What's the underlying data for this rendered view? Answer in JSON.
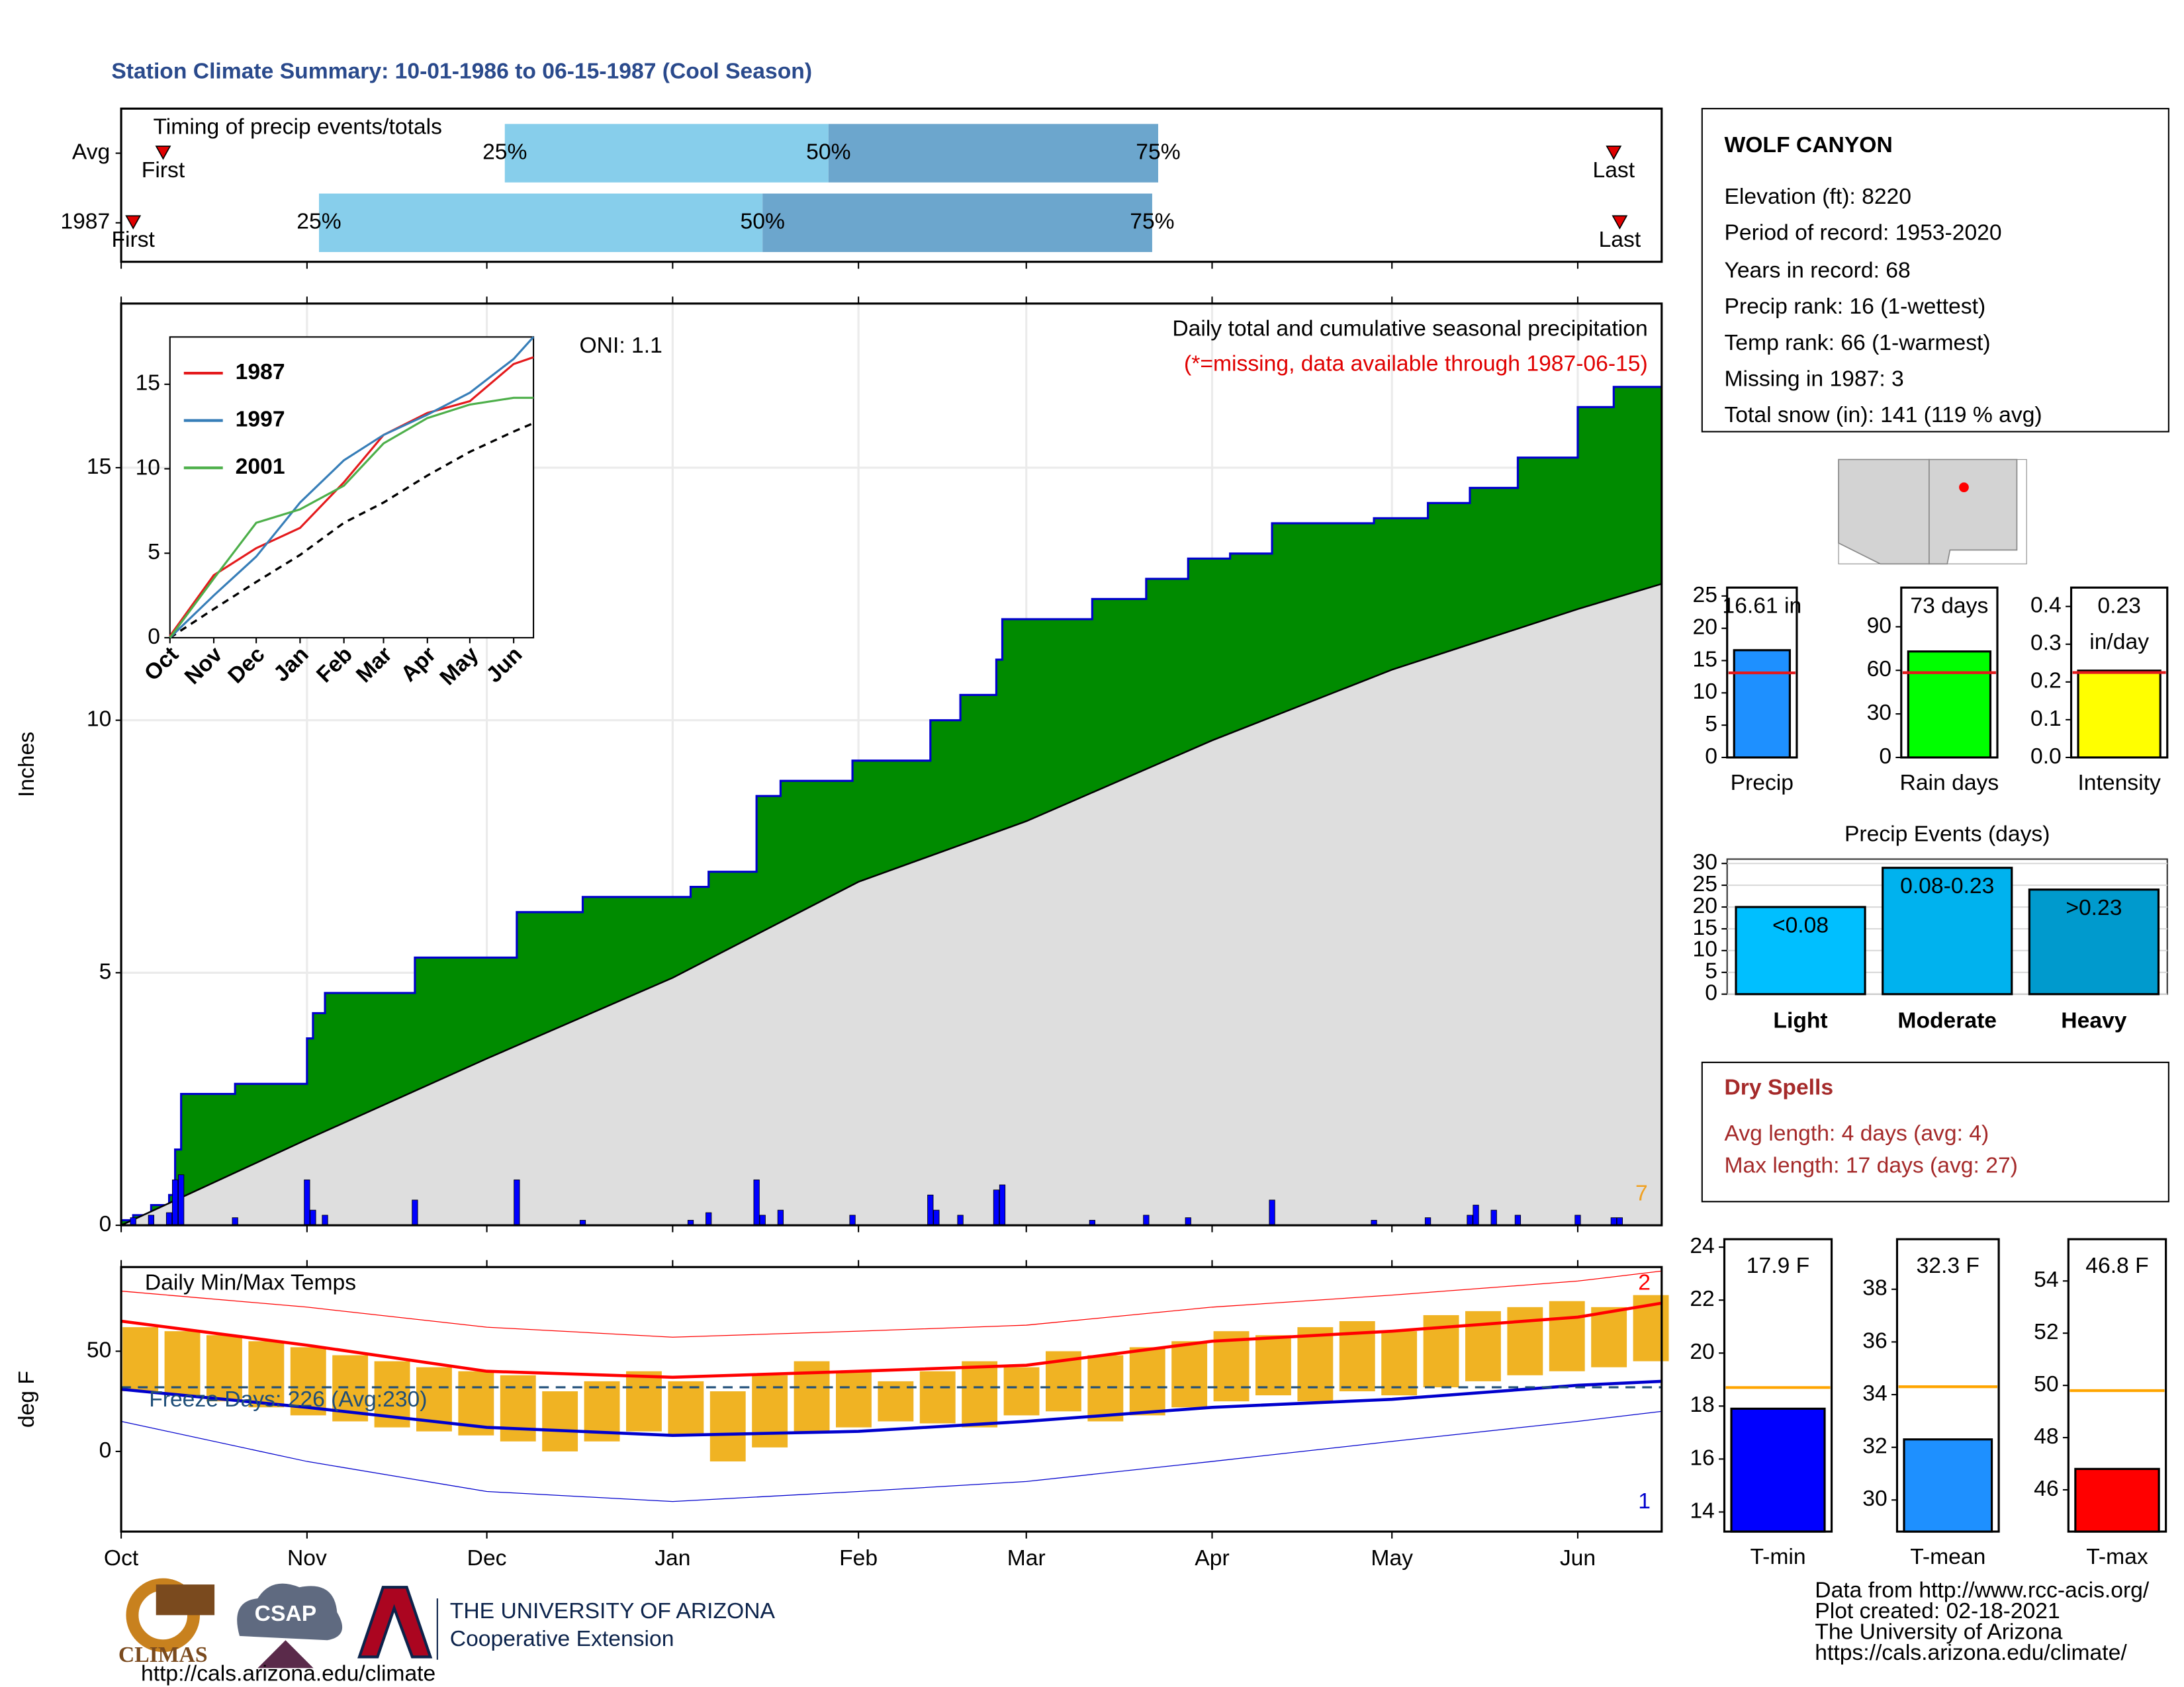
{
  "title": "Station Climate Summary: 10-01-1986 to 06-15-1987 (Cool Season)",
  "chart_data": [
    {
      "type": "timing",
      "title": "Timing of precip events/totals",
      "xlim": [
        0,
        257
      ],
      "xticks": [
        0,
        31,
        61,
        92,
        123,
        151,
        182,
        212,
        243
      ],
      "rows": [
        {
          "name": "Avg",
          "first": 7,
          "q25": 64,
          "q50": 118,
          "q75": 173,
          "last": 249
        },
        {
          "name": "1987",
          "first": 2,
          "q25": 33,
          "q50": 107,
          "q75": 172,
          "last": 250
        }
      ],
      "first_label": "First",
      "last_label": "Last",
      "quantile_labels": [
        "25%",
        "50%",
        "75%"
      ],
      "colors": [
        "#87ceeb",
        "#6ca6cd"
      ],
      "marker_color": "#e00000"
    },
    {
      "type": "area",
      "title": "Daily total and cumulative seasonal precipitation",
      "subtitle": "(*=missing, data available through 1987-06-15)",
      "annotation": "ONI: 1.1",
      "corner_label": "7",
      "y_label": "Inches",
      "xlim": [
        0,
        257
      ],
      "xticks": [
        0,
        31,
        61,
        92,
        123,
        151,
        182,
        212,
        243
      ],
      "ylim": [
        0,
        18.25
      ],
      "yticks": [
        0,
        5,
        10,
        15
      ],
      "grid": true,
      "cumulative": {
        "color": "#008b00",
        "edge": "#0000cd",
        "x": [
          0,
          2,
          2,
          5,
          5,
          8,
          8,
          9,
          9,
          10,
          10,
          19,
          19,
          31,
          31,
          32,
          32,
          34,
          34,
          49,
          49,
          66,
          66,
          77,
          77,
          95,
          95,
          98,
          98,
          106,
          106,
          110,
          110,
          122,
          122,
          135,
          135,
          140,
          140,
          146,
          146,
          147,
          147,
          162,
          162,
          171,
          171,
          178,
          178,
          185,
          185,
          192,
          192,
          209,
          209,
          218,
          218,
          225,
          225,
          233,
          233,
          243,
          243,
          249,
          249,
          257
        ],
        "values": [
          0.1,
          0.1,
          0.2,
          0.2,
          0.4,
          0.4,
          0.6,
          0.6,
          1.5,
          1.5,
          2.6,
          2.6,
          2.8,
          2.8,
          3.7,
          3.7,
          4.2,
          4.2,
          4.6,
          4.6,
          5.3,
          5.3,
          6.2,
          6.2,
          6.5,
          6.5,
          6.7,
          6.7,
          7.0,
          7.0,
          8.5,
          8.5,
          8.8,
          8.8,
          9.2,
          9.2,
          10.0,
          10.0,
          10.5,
          10.5,
          11.2,
          11.2,
          12.0,
          12.0,
          12.4,
          12.4,
          12.8,
          12.8,
          13.2,
          13.2,
          13.3,
          13.3,
          13.9,
          13.9,
          14.0,
          14.0,
          14.3,
          14.3,
          14.6,
          14.6,
          15.2,
          15.2,
          16.2,
          16.2,
          16.6,
          16.6
        ]
      },
      "average": {
        "color": "#dedede",
        "edge": "#000000",
        "x": [
          0,
          31,
          61,
          92,
          123,
          151,
          182,
          212,
          243,
          257
        ],
        "values": [
          0,
          1.7,
          3.3,
          4.9,
          6.8,
          8.0,
          9.6,
          11.0,
          12.2,
          12.7
        ]
      },
      "daily": {
        "color": "#0000ff",
        "x": [
          2,
          5,
          8,
          9,
          10,
          19,
          31,
          32,
          34,
          49,
          66,
          77,
          95,
          98,
          106,
          107,
          110,
          122,
          135,
          136,
          140,
          146,
          147,
          162,
          171,
          178,
          192,
          209,
          218,
          225,
          226,
          229,
          233,
          243,
          249,
          250
        ],
        "values": [
          0.15,
          0.2,
          0.25,
          0.9,
          1.0,
          0.15,
          0.9,
          0.3,
          0.2,
          0.5,
          0.9,
          0.1,
          0.1,
          0.25,
          0.9,
          0.2,
          0.3,
          0.2,
          0.6,
          0.3,
          0.2,
          0.7,
          0.8,
          0.1,
          0.2,
          0.15,
          0.5,
          0.1,
          0.15,
          0.2,
          0.4,
          0.3,
          0.2,
          0.2,
          0.15,
          0.15
        ]
      }
    },
    {
      "type": "line",
      "xlim": [
        0,
        257
      ],
      "xticks": [
        {
          "value": 0,
          "label": "Oct"
        },
        {
          "value": 31,
          "label": "Nov"
        },
        {
          "value": 61,
          "label": "Dec"
        },
        {
          "value": 92,
          "label": "Jan"
        },
        {
          "value": 123,
          "label": "Feb"
        },
        {
          "value": 151,
          "label": "Mar"
        },
        {
          "value": 182,
          "label": "Apr"
        },
        {
          "value": 212,
          "label": "May"
        },
        {
          "value": 243,
          "label": "Jun"
        }
      ],
      "ylim": [
        0,
        17.8
      ],
      "yticks": [
        0,
        5,
        10,
        15
      ],
      "x": [
        0,
        31,
        61,
        92,
        123,
        151,
        182,
        212,
        243,
        257
      ],
      "series": [
        {
          "name": "1987",
          "color": "#e41a1c",
          "values": [
            0.1,
            3.7,
            5.3,
            6.5,
            9.2,
            12.0,
            13.3,
            14.0,
            16.2,
            16.6
          ]
        },
        {
          "name": "1997",
          "color": "#377eb8",
          "values": [
            0,
            2.5,
            4.8,
            8.0,
            10.5,
            12.0,
            13.2,
            14.5,
            16.5,
            17.8
          ]
        },
        {
          "name": "2001",
          "color": "#4daf4a",
          "values": [
            0,
            3.5,
            6.8,
            7.6,
            9.0,
            11.5,
            13.0,
            13.8,
            14.2,
            14.2
          ]
        }
      ],
      "average": [
        0,
        1.7,
        3.3,
        4.9,
        6.8,
        8.0,
        9.6,
        11.0,
        12.2,
        12.7
      ]
    },
    {
      "type": "range",
      "title": "Daily Min/Max Temps",
      "annotation": "Freeze Days: 226 (Avg:230)",
      "y_label": "deg F",
      "max_label": "2",
      "min_label": "1",
      "xlim": [
        0,
        257
      ],
      "xticks": [
        {
          "value": 0,
          "label": "Oct"
        },
        {
          "value": 31,
          "label": "Nov"
        },
        {
          "value": 61,
          "label": "Dec"
        },
        {
          "value": 92,
          "label": "Jan"
        },
        {
          "value": 123,
          "label": "Feb"
        },
        {
          "value": 151,
          "label": "Mar"
        },
        {
          "value": 182,
          "label": "Apr"
        },
        {
          "value": 212,
          "label": "May"
        },
        {
          "value": 243,
          "label": "Jun"
        }
      ],
      "ylim": [
        -40,
        92
      ],
      "yticks": [
        0,
        50
      ],
      "freeze": 32,
      "normals_x": [
        0,
        31,
        61,
        92,
        123,
        151,
        182,
        212,
        243,
        257
      ],
      "avg_max": [
        65,
        53,
        40,
        37,
        40,
        43,
        55,
        60,
        67,
        74
      ],
      "avg_min": [
        31,
        22,
        12,
        8,
        10,
        15,
        22,
        26,
        33,
        35
      ],
      "record_max": [
        80,
        72,
        62,
        57,
        60,
        63,
        72,
        78,
        85,
        90
      ],
      "record_min": [
        15,
        -5,
        -20,
        -25,
        -20,
        -15,
        -5,
        5,
        15,
        20
      ],
      "x": [
        0,
        7,
        14,
        21,
        28,
        35,
        42,
        49,
        56,
        63,
        70,
        77,
        84,
        91,
        98,
        105,
        112,
        119,
        126,
        133,
        140,
        147,
        154,
        161,
        168,
        175,
        182,
        189,
        196,
        203,
        210,
        217,
        224,
        231,
        238,
        245,
        252
      ],
      "daily_max": [
        62,
        60,
        58,
        55,
        52,
        48,
        45,
        42,
        40,
        38,
        30,
        35,
        40,
        35,
        30,
        38,
        45,
        40,
        35,
        40,
        45,
        42,
        50,
        48,
        52,
        55,
        60,
        58,
        62,
        65,
        60,
        68,
        70,
        72,
        75,
        72,
        78
      ],
      "daily_min": [
        30,
        28,
        25,
        22,
        18,
        15,
        12,
        10,
        8,
        5,
        0,
        5,
        10,
        8,
        -5,
        2,
        10,
        12,
        15,
        14,
        12,
        18,
        20,
        15,
        18,
        22,
        25,
        28,
        25,
        30,
        28,
        32,
        35,
        38,
        40,
        42,
        45
      ],
      "bar_color": "#f0b323",
      "max_color": "#ff0000",
      "min_color": "#0000cd",
      "freeze_color": "#1f4e79"
    },
    {
      "type": "gauge",
      "categories": [
        "Precip"
      ],
      "values": [
        16.61
      ],
      "value_labels": [
        "16.61 in"
      ],
      "color": "#1e90ff",
      "average": 13.1,
      "average_color": "#e31a1c",
      "ylim": [
        0,
        26.3
      ],
      "yticks": [
        0,
        5,
        10,
        15,
        20,
        25
      ]
    },
    {
      "type": "gauge",
      "categories": [
        "Rain days"
      ],
      "values": [
        73
      ],
      "value_labels": [
        "73 days"
      ],
      "color": "#00ff00",
      "average": 58.4,
      "average_color": "#e31a1c",
      "ylim": [
        0,
        117
      ],
      "yticks": [
        0,
        30,
        60,
        90
      ]
    },
    {
      "type": "gauge",
      "categories": [
        "Intensity"
      ],
      "values": [
        0.23
      ],
      "value_labels": [
        "0.23"
      ],
      "unit_label": "in/day",
      "color": "#ffff00",
      "average": 0.225,
      "average_color": "#e31a1c",
      "ylim": [
        0,
        0.45
      ],
      "yticks": [
        {
          "value": 0,
          "label": "0.0"
        },
        0.1,
        0.2,
        0.3,
        0.4
      ]
    },
    {
      "type": "bar",
      "title": "Precip Events (days)",
      "categories": [
        "Light",
        "Moderate",
        "Heavy"
      ],
      "values": [
        20,
        29,
        24
      ],
      "bin_labels": [
        "<0.08",
        "0.08-0.23",
        ">0.23"
      ],
      "colors": [
        "#00bfff",
        "#00b2ee",
        "#009acd"
      ],
      "ylim": [
        0,
        31
      ],
      "yticks": [
        0,
        5,
        10,
        15,
        20,
        25,
        30
      ],
      "grid": true
    },
    {
      "type": "gauge",
      "categories": [
        "T-min"
      ],
      "values": [
        17.9
      ],
      "value_labels": [
        "17.9 F"
      ],
      "color": "#0000ff",
      "average": 18.7,
      "average_color": "#ffa500",
      "ylim": [
        13.26,
        24.3
      ],
      "yticks": [
        14,
        16,
        18,
        20,
        22,
        24
      ]
    },
    {
      "type": "gauge",
      "categories": [
        "T-mean"
      ],
      "values": [
        32.3
      ],
      "value_labels": [
        "32.3 F"
      ],
      "color": "#1e90ff",
      "average": 34.3,
      "average_color": "#ffa500",
      "ylim": [
        28.8,
        39.9
      ],
      "yticks": [
        30,
        32,
        34,
        36,
        38
      ]
    },
    {
      "type": "gauge",
      "categories": [
        "T-max"
      ],
      "values": [
        46.8
      ],
      "value_labels": [
        "46.8 F"
      ],
      "color": "#ff0000",
      "average": 49.8,
      "average_color": "#ffa500",
      "ylim": [
        44.4,
        55.6
      ],
      "yticks": [
        46,
        48,
        50,
        52,
        54
      ]
    }
  ],
  "station": {
    "name": "WOLF CANYON",
    "lines": [
      "Elevation (ft): 8220",
      "Period of record: 1953-2020",
      "Years in record: 68",
      "Precip rank: 16 (1-wettest)",
      "Temp rank: 66 (1-warmest)",
      "Missing in 1987: 3",
      "Total snow (in): 141 (119 % avg)"
    ]
  },
  "dry_spells": {
    "title": "Dry Spells",
    "lines": [
      "Avg length: 4 days (avg: 4)",
      "Max length: 17 days (avg: 27)"
    ]
  },
  "footer": {
    "logos": [
      "CLIMAS",
      "CSAP",
      "http://cals.arizona.edu/climate"
    ],
    "university": "THE UNIVERSITY OF ARIZONA",
    "unit": "Cooperative Extension",
    "credits": [
      "Data from http://www.rcc-acis.org/",
      "Plot created: 02-18-2021",
      "The University of Arizona",
      "https://cals.arizona.edu/climate/"
    ]
  }
}
